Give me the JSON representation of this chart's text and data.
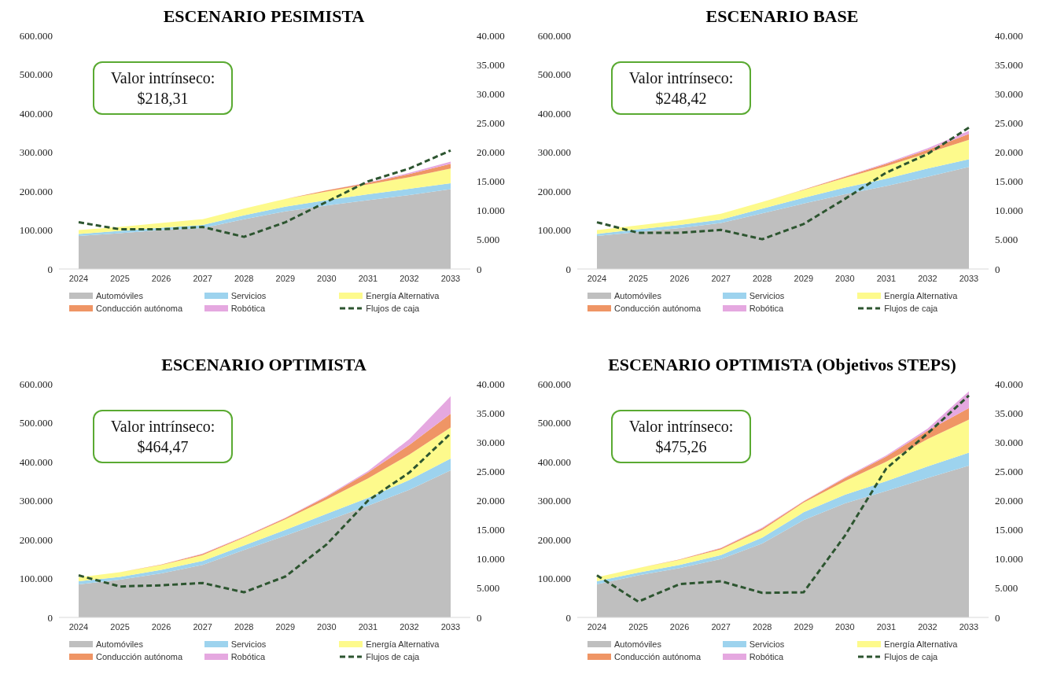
{
  "chart_data": [
    {
      "type": "area",
      "title": "ESCENARIO PESIMISTA",
      "stacked": true,
      "categories": [
        "2024",
        "2025",
        "2026",
        "2027",
        "2028",
        "2029",
        "2030",
        "2031",
        "2032",
        "2033"
      ],
      "ylim": [
        0,
        600000
      ],
      "yticks": [
        {
          "value": 0,
          "label": "0"
        },
        {
          "value": 100000,
          "label": "100.000"
        },
        {
          "value": 200000,
          "label": "200.000"
        },
        {
          "value": 300000,
          "label": "300.000"
        },
        {
          "value": 400000,
          "label": "400.000"
        },
        {
          "value": 500000,
          "label": "500.000"
        },
        {
          "value": 600000,
          "label": "600.000"
        }
      ],
      "y2lim": [
        0,
        40000
      ],
      "y2ticks": [
        {
          "value": 0,
          "label": "0"
        },
        {
          "value": 5000,
          "label": "5.000"
        },
        {
          "value": 10000,
          "label": "10.000"
        },
        {
          "value": 15000,
          "label": "15.000"
        },
        {
          "value": 20000,
          "label": "20.000"
        },
        {
          "value": 25000,
          "label": "25.000"
        },
        {
          "value": 30000,
          "label": "30.000"
        },
        {
          "value": 35000,
          "label": "35.000"
        },
        {
          "value": 40000,
          "label": "40.000"
        }
      ],
      "grid": false,
      "legend": "bottom",
      "annotations": [
        "Valor intrínseco: $218,31"
      ],
      "series": [
        {
          "name": "Automóviles",
          "color": "#bfbfbf",
          "values": [
            85000,
            92000,
            100000,
            105000,
            128000,
            148000,
            163000,
            177000,
            190000,
            205000
          ]
        },
        {
          "name": "Servicios",
          "color": "#9dd3ee",
          "values": [
            5000,
            6000,
            6000,
            8000,
            10000,
            12000,
            14000,
            15000,
            16000,
            15000
          ]
        },
        {
          "name": "Energía Alternativa",
          "color": "#fdfa8c",
          "values": [
            10000,
            10000,
            12000,
            15000,
            17000,
            20000,
            22000,
            25000,
            30000,
            38000
          ]
        },
        {
          "name": "Conducción autónoma",
          "color": "#ef9565",
          "values": [
            0,
            0,
            0,
            0,
            0,
            0,
            3000,
            4000,
            8000,
            12000
          ]
        },
        {
          "name": "Robótica",
          "color": "#e5a8e0",
          "values": [
            0,
            0,
            0,
            0,
            0,
            0,
            0,
            1000,
            3000,
            6000
          ]
        },
        {
          "name": "Flujos de caja",
          "type": "line",
          "axis": "y2",
          "line_style": "dashed",
          "marker": "none",
          "color": "#2d5530",
          "values": [
            8000,
            6800,
            6800,
            7200,
            5500,
            8000,
            11500,
            15000,
            17200,
            20300
          ]
        }
      ]
    },
    {
      "type": "area",
      "title": "ESCENARIO BASE",
      "stacked": true,
      "categories": [
        "2024",
        "2025",
        "2026",
        "2027",
        "2028",
        "2029",
        "2030",
        "2031",
        "2032",
        "2033"
      ],
      "ylim": [
        0,
        600000
      ],
      "yticks": [
        {
          "value": 0,
          "label": "0"
        },
        {
          "value": 100000,
          "label": "100.000"
        },
        {
          "value": 200000,
          "label": "200.000"
        },
        {
          "value": 300000,
          "label": "300.000"
        },
        {
          "value": 400000,
          "label": "400.000"
        },
        {
          "value": 500000,
          "label": "500.000"
        },
        {
          "value": 600000,
          "label": "600.000"
        }
      ],
      "y2lim": [
        0,
        40000
      ],
      "y2ticks": [
        {
          "value": 0,
          "label": "0"
        },
        {
          "value": 5000,
          "label": "5.000"
        },
        {
          "value": 10000,
          "label": "10.000"
        },
        {
          "value": 15000,
          "label": "15.000"
        },
        {
          "value": 20000,
          "label": "20.000"
        },
        {
          "value": 25000,
          "label": "25.000"
        },
        {
          "value": 30000,
          "label": "30.000"
        },
        {
          "value": 35000,
          "label": "35.000"
        },
        {
          "value": 40000,
          "label": "40.000"
        }
      ],
      "grid": false,
      "legend": "bottom",
      "annotations": [
        "Valor intrínseco: $248,42"
      ],
      "series": [
        {
          "name": "Automóviles",
          "color": "#bfbfbf",
          "values": [
            85000,
            95000,
            105000,
            118000,
            143000,
            168000,
            192000,
            213000,
            237000,
            262000
          ]
        },
        {
          "name": "Servicios",
          "color": "#9dd3ee",
          "values": [
            5000,
            7000,
            8000,
            9000,
            12000,
            15000,
            17000,
            19000,
            21000,
            20000
          ]
        },
        {
          "name": "Energía Alternativa",
          "color": "#fdfa8c",
          "values": [
            10000,
            10000,
            12000,
            15000,
            17000,
            20000,
            25000,
            32000,
            40000,
            50000
          ]
        },
        {
          "name": "Conducción autónoma",
          "color": "#ef9565",
          "values": [
            0,
            0,
            0,
            0,
            0,
            1000,
            3000,
            6000,
            8000,
            15000
          ]
        },
        {
          "name": "Robótica",
          "color": "#e5a8e0",
          "values": [
            0,
            0,
            0,
            0,
            0,
            0,
            1000,
            2000,
            4000,
            8000
          ]
        },
        {
          "name": "Flujos de caja",
          "type": "line",
          "axis": "y2",
          "line_style": "dashed",
          "marker": "none",
          "color": "#2d5530",
          "values": [
            8000,
            6200,
            6200,
            6700,
            5100,
            7700,
            12000,
            16500,
            19700,
            24200
          ]
        }
      ]
    },
    {
      "type": "area",
      "title": "ESCENARIO OPTIMISTA",
      "stacked": true,
      "categories": [
        "2024",
        "2025",
        "2026",
        "2027",
        "2028",
        "2029",
        "2030",
        "2031",
        "2032",
        "2033"
      ],
      "ylim": [
        0,
        600000
      ],
      "yticks": [
        {
          "value": 0,
          "label": "0"
        },
        {
          "value": 100000,
          "label": "100.000"
        },
        {
          "value": 200000,
          "label": "200.000"
        },
        {
          "value": 300000,
          "label": "300.000"
        },
        {
          "value": 400000,
          "label": "400.000"
        },
        {
          "value": 500000,
          "label": "500.000"
        },
        {
          "value": 600000,
          "label": "600.000"
        }
      ],
      "y2lim": [
        0,
        40000
      ],
      "y2ticks": [
        {
          "value": 0,
          "label": "0"
        },
        {
          "value": 5000,
          "label": "5.000"
        },
        {
          "value": 10000,
          "label": "10.000"
        },
        {
          "value": 15000,
          "label": "15.000"
        },
        {
          "value": 20000,
          "label": "20.000"
        },
        {
          "value": 25000,
          "label": "25.000"
        },
        {
          "value": 30000,
          "label": "30.000"
        },
        {
          "value": 35000,
          "label": "35.000"
        },
        {
          "value": 40000,
          "label": "40.000"
        }
      ],
      "grid": false,
      "legend": "bottom",
      "annotations": [
        "Valor intrínseco: $464,47"
      ],
      "series": [
        {
          "name": "Automóviles",
          "color": "#bfbfbf",
          "values": [
            85000,
            97000,
            113000,
            135000,
            173000,
            210000,
            248000,
            287000,
            328000,
            378000
          ]
        },
        {
          "name": "Servicios",
          "color": "#9dd3ee",
          "values": [
            8000,
            7000,
            9000,
            10000,
            12000,
            15000,
            18000,
            20000,
            25000,
            30000
          ]
        },
        {
          "name": "Energía Alternativa",
          "color": "#fdfa8c",
          "values": [
            10000,
            12000,
            13000,
            15000,
            20000,
            27000,
            37000,
            50000,
            65000,
            80000
          ]
        },
        {
          "name": "Conducción autónoma",
          "color": "#ef9565",
          "values": [
            0,
            0,
            1000,
            3000,
            2000,
            3000,
            7000,
            15000,
            25000,
            35000
          ]
        },
        {
          "name": "Robótica",
          "color": "#e5a8e0",
          "values": [
            0,
            0,
            0,
            1000,
            1000,
            1000,
            2000,
            4000,
            15000,
            45000
          ]
        },
        {
          "name": "Flujos de caja",
          "type": "line",
          "axis": "y2",
          "line_style": "dashed",
          "marker": "none",
          "color": "#2d5530",
          "values": [
            7200,
            5300,
            5500,
            5900,
            4300,
            7000,
            12500,
            20000,
            24800,
            31500
          ]
        }
      ]
    },
    {
      "type": "area",
      "title": "ESCENARIO OPTIMISTA (Objetivos STEPS)",
      "stacked": true,
      "categories": [
        "2024",
        "2025",
        "2026",
        "2027",
        "2028",
        "2029",
        "2030",
        "2031",
        "2032",
        "2033"
      ],
      "ylim": [
        0,
        600000
      ],
      "yticks": [
        {
          "value": 0,
          "label": "0"
        },
        {
          "value": 100000,
          "label": "100.000"
        },
        {
          "value": 200000,
          "label": "200.000"
        },
        {
          "value": 300000,
          "label": "300.000"
        },
        {
          "value": 400000,
          "label": "400.000"
        },
        {
          "value": 500000,
          "label": "500.000"
        },
        {
          "value": 600000,
          "label": "600.000"
        }
      ],
      "y2lim": [
        0,
        40000
      ],
      "y2ticks": [
        {
          "value": 0,
          "label": "0"
        },
        {
          "value": 5000,
          "label": "5.000"
        },
        {
          "value": 10000,
          "label": "10.000"
        },
        {
          "value": 15000,
          "label": "15.000"
        },
        {
          "value": 20000,
          "label": "20.000"
        },
        {
          "value": 25000,
          "label": "25.000"
        },
        {
          "value": 30000,
          "label": "30.000"
        },
        {
          "value": 35000,
          "label": "35.000"
        },
        {
          "value": 40000,
          "label": "40.000"
        }
      ],
      "grid": false,
      "legend": "bottom",
      "annotations": [
        "Valor intrínseco: $475,26"
      ],
      "series": [
        {
          "name": "Automóviles",
          "color": "#bfbfbf",
          "values": [
            85000,
            108000,
            127000,
            150000,
            190000,
            250000,
            293000,
            325000,
            358000,
            390000
          ]
        },
        {
          "name": "Servicios",
          "color": "#9dd3ee",
          "values": [
            8000,
            7000,
            8000,
            10000,
            15000,
            20000,
            22000,
            25000,
            30000,
            33000
          ]
        },
        {
          "name": "Energía Alternativa",
          "color": "#fdfa8c",
          "values": [
            10000,
            12000,
            13000,
            15000,
            20000,
            25000,
            35000,
            50000,
            70000,
            85000
          ]
        },
        {
          "name": "Conducción autónoma",
          "color": "#ef9565",
          "values": [
            0,
            0,
            1000,
            3000,
            4000,
            3000,
            8000,
            13000,
            22000,
            30000
          ]
        },
        {
          "name": "Robótica",
          "color": "#e5a8e0",
          "values": [
            0,
            0,
            0,
            1000,
            2000,
            1000,
            2000,
            3000,
            5000,
            43000
          ]
        },
        {
          "name": "Flujos de caja",
          "type": "line",
          "axis": "y2",
          "line_style": "dashed",
          "marker": "none",
          "color": "#2d5530",
          "values": [
            7200,
            2700,
            5700,
            6200,
            4200,
            4300,
            14000,
            25500,
            31500,
            38000
          ]
        }
      ]
    }
  ]
}
